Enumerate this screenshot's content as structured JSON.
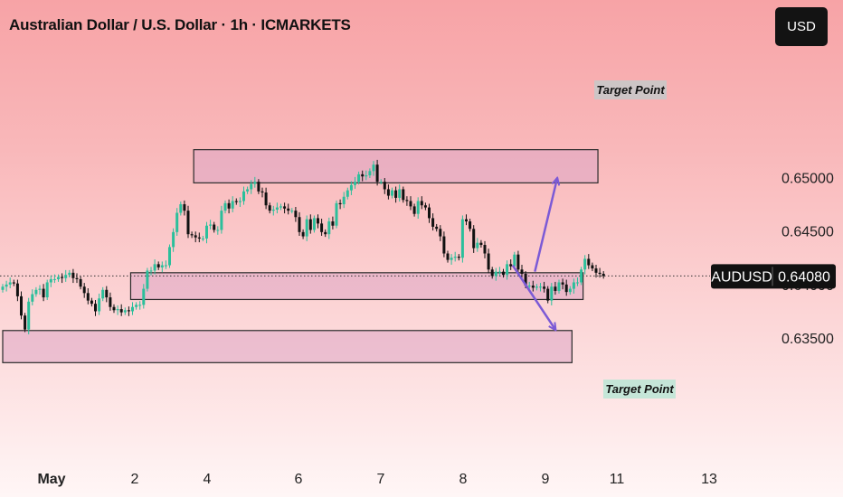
{
  "header": {
    "title": "Australian Dollar / U.S. Dollar · 1h · ICMARKETS",
    "currency_button": "USD"
  },
  "chart_data": {
    "type": "candlestick",
    "symbol": "AUDUSD",
    "last_price_label": "0.64080",
    "last_price": 0.6408,
    "y_ticks": [
      "0.65000",
      "0.64500",
      "0.64000",
      "0.63500"
    ],
    "y_tick_values": [
      0.65,
      0.645,
      0.64,
      0.635
    ],
    "x_ticks": [
      "May",
      "2",
      "4",
      "6",
      "7",
      "8",
      "9",
      "11",
      "13"
    ],
    "ylim": [
      0.6307,
      0.6562
    ],
    "grid": false,
    "colors": {
      "up": "#2bbf9b",
      "down": "#111111",
      "zone_fill": "#dfa5c4",
      "zone_stroke": "#2a2a2a",
      "arrow": "#7b5ad6",
      "tag_bg": "#111111"
    },
    "zones": [
      {
        "x_start": 51.5,
        "x_end": 160.5,
        "y_low": 0.6495,
        "y_high": 0.6526,
        "label": "Target Point"
      },
      {
        "x_start": 34.5,
        "x_end": 156.5,
        "y_low": 0.6386,
        "y_high": 0.6411,
        "label": ""
      },
      {
        "x_start": 0,
        "x_end": 153.5,
        "y_low": 0.6327,
        "y_high": 0.6357,
        "label": "Target Point"
      }
    ],
    "arrows": [
      {
        "from": [
          143.5,
          0.6412
        ],
        "to": [
          149.5,
          0.6499
        ]
      },
      {
        "from": [
          137.5,
          0.6418
        ],
        "to": [
          149,
          0.6358
        ]
      }
    ],
    "closes": [
      0.6398,
      0.64,
      0.6402,
      0.6401,
      0.6389,
      0.6371,
      0.6358,
      0.6384,
      0.6391,
      0.6395,
      0.6396,
      0.6388,
      0.6402,
      0.6405,
      0.6405,
      0.6407,
      0.6406,
      0.6409,
      0.6411,
      0.6406,
      0.6405,
      0.6398,
      0.6392,
      0.6385,
      0.6382,
      0.6375,
      0.6387,
      0.6395,
      0.6388,
      0.6379,
      0.6376,
      0.6377,
      0.6374,
      0.6376,
      0.6375,
      0.6379,
      0.6381,
      0.6381,
      0.6396,
      0.6413,
      0.6413,
      0.6419,
      0.6416,
      0.6418,
      0.6418,
      0.6435,
      0.6449,
      0.6467,
      0.6475,
      0.6469,
      0.6447,
      0.6446,
      0.6444,
      0.6443,
      0.6443,
      0.6455,
      0.6456,
      0.6451,
      0.6451,
      0.6469,
      0.6476,
      0.6471,
      0.6478,
      0.6477,
      0.6478,
      0.6487,
      0.6489,
      0.6494,
      0.6496,
      0.6487,
      0.6486,
      0.6474,
      0.6469,
      0.647,
      0.6472,
      0.6473,
      0.6471,
      0.6469,
      0.6469,
      0.6463,
      0.6449,
      0.6445,
      0.6461,
      0.6451,
      0.6462,
      0.6457,
      0.6449,
      0.6447,
      0.6459,
      0.6455,
      0.6476,
      0.6475,
      0.6482,
      0.6488,
      0.6493,
      0.6496,
      0.6503,
      0.6501,
      0.6502,
      0.6506,
      0.6512,
      0.6496,
      0.6496,
      0.6489,
      0.6483,
      0.6488,
      0.6481,
      0.6489,
      0.6479,
      0.6478,
      0.6473,
      0.6466,
      0.6478,
      0.6474,
      0.6472,
      0.6462,
      0.6454,
      0.6452,
      0.6445,
      0.6429,
      0.6423,
      0.6425,
      0.6426,
      0.6425,
      0.6461,
      0.6459,
      0.6452,
      0.6434,
      0.6439,
      0.6437,
      0.6429,
      0.6414,
      0.6408,
      0.6412,
      0.6412,
      0.6409,
      0.6419,
      0.6417,
      0.6428,
      0.6414,
      0.641,
      0.6399,
      0.6399,
      0.6397,
      0.6398,
      0.6398,
      0.6396,
      0.6385,
      0.6398,
      0.6394,
      0.6402,
      0.64,
      0.6393,
      0.6396,
      0.6402,
      0.6402,
      0.6414,
      0.6424,
      0.6418,
      0.6415,
      0.6411,
      0.641,
      0.6408
    ]
  }
}
